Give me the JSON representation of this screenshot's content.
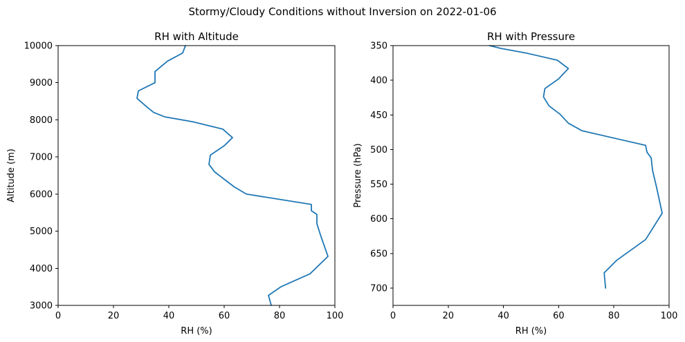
{
  "figure": {
    "suptitle": "Stormy/Cloudy Conditions without Inversion on 2022-01-06",
    "line_color": "#1f77b4"
  },
  "chart_data": [
    {
      "type": "line",
      "title": "RH with Altitude",
      "xlabel": "RH (%)",
      "ylabel": "Altitude (m)",
      "xlim": [
        0,
        100
      ],
      "ylim": [
        3000,
        10000
      ],
      "xticks": [
        0,
        20,
        40,
        60,
        80,
        100
      ],
      "yticks": [
        3000,
        4000,
        5000,
        6000,
        7000,
        8000,
        9000,
        10000
      ],
      "x_tick_labels": [
        "0",
        "20",
        "40",
        "60",
        "80",
        "100"
      ],
      "y_tick_labels": [
        "3000",
        "4000",
        "5000",
        "6000",
        "7000",
        "8000",
        "9000",
        "10000"
      ],
      "grid": false,
      "series": [
        {
          "x": [
            77,
            76,
            80.5,
            91,
            97.5,
            95,
            93.5,
            93.5,
            91.5,
            91.5,
            68,
            63.5,
            60,
            56.5,
            54.5,
            55,
            60,
            63,
            59.5,
            48.5,
            38.5,
            34.5,
            32,
            28.5,
            29,
            35,
            35,
            39.5,
            45,
            46
          ],
          "y": [
            3000,
            3270,
            3500,
            3850,
            4320,
            4850,
            5200,
            5450,
            5550,
            5720,
            6000,
            6200,
            6400,
            6600,
            6800,
            7050,
            7300,
            7520,
            7750,
            7950,
            8080,
            8200,
            8350,
            8580,
            8780,
            9000,
            9300,
            9580,
            9800,
            10000
          ]
        }
      ]
    },
    {
      "type": "line",
      "title": "RH with Pressure",
      "xlabel": "RH (%)",
      "ylabel": "Pressure (hPa)",
      "xlim": [
        0,
        100
      ],
      "ylim": [
        725,
        350
      ],
      "inverted_y": true,
      "xticks": [
        0,
        20,
        40,
        60,
        80,
        100
      ],
      "yticks": [
        350,
        400,
        450,
        500,
        550,
        600,
        650,
        700
      ],
      "x_tick_labels": [
        "0",
        "20",
        "40",
        "60",
        "80",
        "100"
      ],
      "y_tick_labels": [
        "350",
        "400",
        "450",
        "500",
        "550",
        "600",
        "650",
        "700"
      ],
      "grid": false,
      "series": [
        {
          "x": [
            77,
            76.5,
            81,
            91.5,
            97.5,
            95.5,
            94,
            93.5,
            92,
            91.5,
            68.5,
            63.5,
            60.5,
            56.5,
            54.5,
            55,
            60,
            63.5,
            59.5,
            48.5,
            39,
            35
          ],
          "y": [
            700,
            678,
            660,
            630,
            592,
            555,
            530,
            512,
            504,
            494,
            473,
            462,
            449,
            437,
            424,
            412,
            398,
            383,
            371,
            361,
            354,
            350
          ]
        }
      ]
    }
  ]
}
